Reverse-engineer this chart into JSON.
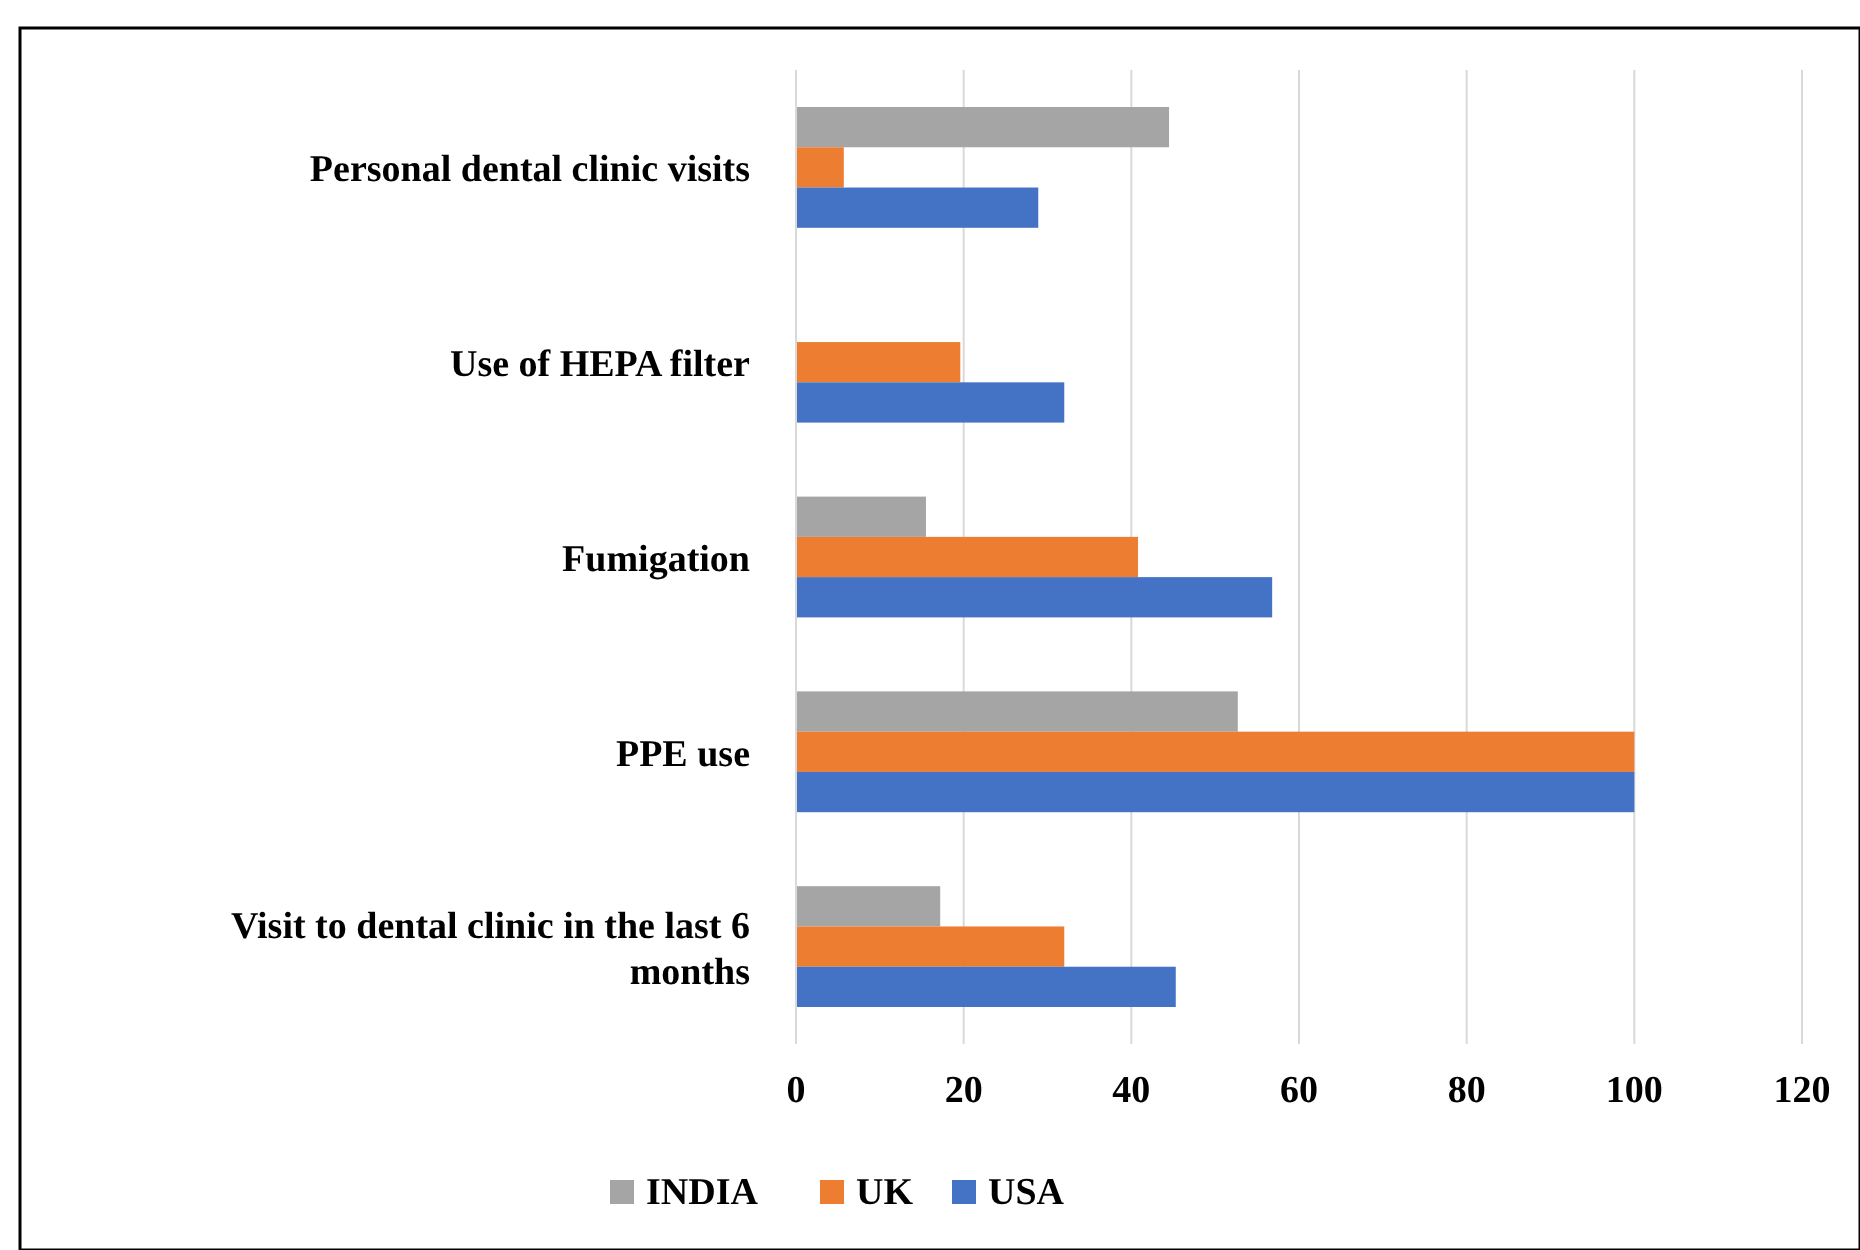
{
  "chart_data": {
    "type": "bar",
    "orientation": "horizontal",
    "categories": [
      "Personal dental clinic visits",
      "Use of HEPA filter",
      "Fumigation",
      "PPE use",
      "Visit to dental clinic in the last 6 months"
    ],
    "series": [
      {
        "name": "INDIA",
        "color": "#a5a5a5",
        "values": [
          44.5,
          0,
          15.5,
          52.7,
          17.2
        ]
      },
      {
        "name": "UK",
        "color": "#ed7d31",
        "values": [
          5.7,
          19.6,
          40.8,
          100,
          32
        ]
      },
      {
        "name": "USA",
        "color": "#4472c4",
        "values": [
          28.9,
          32,
          56.8,
          100,
          45.3
        ]
      }
    ],
    "xlim": [
      0,
      120
    ],
    "xticks": [
      0,
      20,
      40,
      60,
      80,
      100,
      120
    ],
    "grid": "x",
    "legend": "bottom"
  }
}
